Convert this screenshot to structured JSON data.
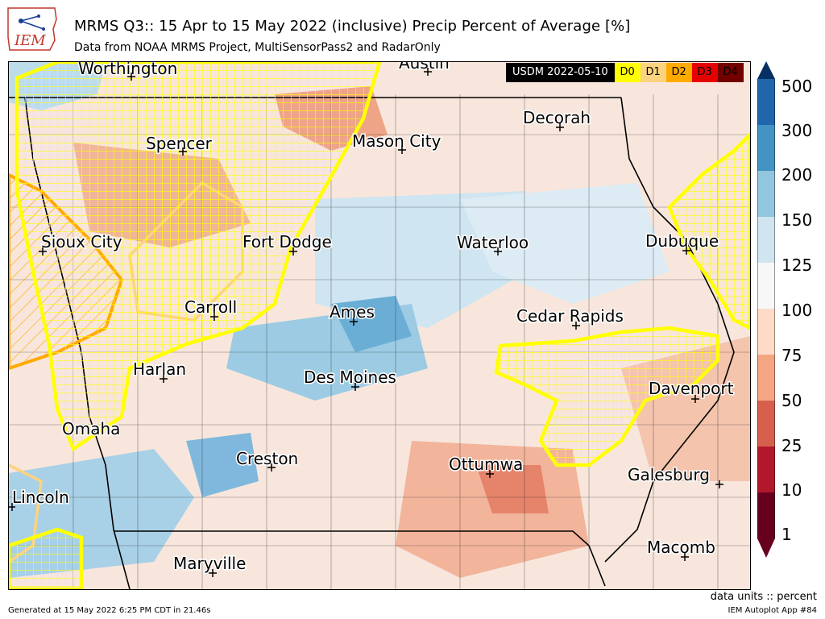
{
  "header": {
    "title": "MRMS Q3:: 15 Apr to 15 May 2022 (inclusive) Precip Percent of Average [%]",
    "subtitle": "Data from NOAA MRMS Project, MultiSensorPass2 and RadarOnly",
    "logo_text": "IEM"
  },
  "usdm_legend": {
    "label": "USDM 2022-05-10",
    "categories": [
      {
        "name": "D0",
        "color": "#ffff00"
      },
      {
        "name": "D1",
        "color": "#fcd37f"
      },
      {
        "name": "D2",
        "color": "#ffaa00"
      },
      {
        "name": "D3",
        "color": "#e60000"
      },
      {
        "name": "D4",
        "color": "#730000"
      }
    ]
  },
  "colorbar": {
    "labels": [
      "500",
      "300",
      "200",
      "150",
      "125",
      "100",
      "75",
      "50",
      "25",
      "10",
      "1"
    ],
    "colors": [
      "#053061",
      "#2166ac",
      "#4393c3",
      "#92c5de",
      "#d1e5f0",
      "#f7f7f7",
      "#fddbc7",
      "#f4a582",
      "#d6604d",
      "#b2182b",
      "#67001f"
    ]
  },
  "cities": [
    {
      "name": "Worthington"
    },
    {
      "name": "Austin"
    },
    {
      "name": "Spencer"
    },
    {
      "name": "Mason City"
    },
    {
      "name": "Decorah"
    },
    {
      "name": "Sioux City"
    },
    {
      "name": "Fort Dodge"
    },
    {
      "name": "Waterloo"
    },
    {
      "name": "Dubuque"
    },
    {
      "name": "Carroll"
    },
    {
      "name": "Ames"
    },
    {
      "name": "Cedar Rapids"
    },
    {
      "name": "Harlan"
    },
    {
      "name": "Des Moines"
    },
    {
      "name": "Davenport"
    },
    {
      "name": "Omaha"
    },
    {
      "name": "Creston"
    },
    {
      "name": "Ottumwa"
    },
    {
      "name": "Galesburg"
    },
    {
      "name": "Lincoln"
    },
    {
      "name": "Maryville"
    },
    {
      "name": "Macomb"
    }
  ],
  "footer": {
    "units": "data units :: percent",
    "generated": "Generated at 15 May 2022 6:25 PM CDT in 21.46s",
    "app": "IEM Autoplot App #84"
  }
}
